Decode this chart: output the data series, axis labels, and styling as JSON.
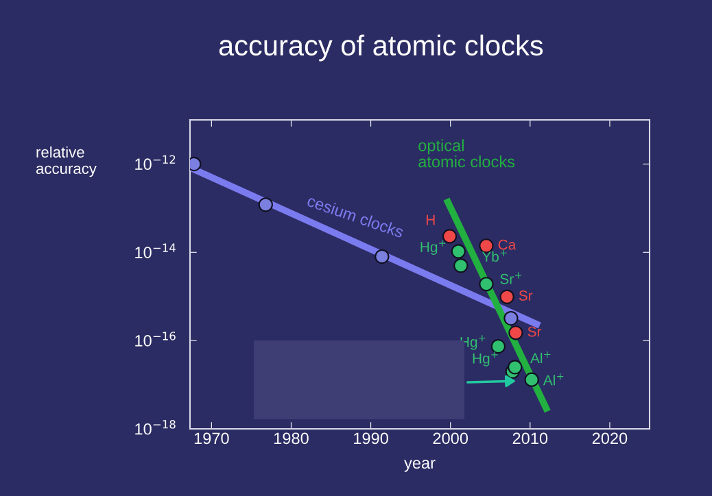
{
  "chart_data": {
    "type": "scatter",
    "title": "accuracy of atomic clocks",
    "xlabel": "year",
    "ylabel": "relative\naccuracy",
    "log": "y",
    "xlim": [
      1967.3,
      2025
    ],
    "ylim": [
      1e-18,
      1e-11
    ],
    "xticks": [
      1970,
      1980,
      1990,
      2000,
      2010,
      2020
    ],
    "yticks": [
      {
        "value": 1e-18,
        "label": "10$^{−18}$"
      },
      {
        "value": 1e-16,
        "label": "10$^{−16}$"
      },
      {
        "value": 1e-14,
        "label": "10$^{−14}$"
      },
      {
        "value": 1e-12,
        "label": "10$^{−12}$"
      }
    ],
    "grid": false,
    "series": [
      {
        "type": "line",
        "name": "cesium clocks",
        "color": "#7b7bf0",
        "x": [
          1967.3,
          2011.2
        ],
        "values": [
          8.3e-13,
          2.2e-16
        ]
      },
      {
        "type": "line",
        "name": "optical\natomic clocks",
        "color": "#22b040",
        "x": [
          1999.5,
          2012.2
        ],
        "values": [
          1.6e-13,
          2.5e-18
        ]
      },
      {
        "marker": "circle",
        "color": "#7b7fe0",
        "x": [
          1967.8,
          1976.8,
          1991.4,
          2007.6
        ],
        "values": [
          1e-12,
          1.2e-13,
          8e-15,
          3.2e-16
        ]
      },
      {
        "marker": "circle",
        "color": "#f04848",
        "x": [
          1999.9,
          2004.5,
          2007.1,
          2008.2
        ],
        "values": [
          2.3e-14,
          1.4e-14,
          9.8e-16,
          1.5e-16
        ]
      },
      {
        "marker": "circle",
        "color": "#30c070",
        "x": [
          2001.0,
          2001.3,
          2004.5,
          2006.0,
          2007.8,
          2008.1,
          2010.2
        ],
        "values": [
          1.05e-14,
          5e-15,
          1.9e-15,
          7.4e-17,
          2e-17,
          2.5e-17,
          1.3e-17
        ]
      }
    ],
    "annotations": [
      {
        "text": "H",
        "x": 1999.9,
        "y": 2.3e-14
      },
      {
        "text": "Ca",
        "x": 2004.5,
        "y": 1.4e-14
      },
      {
        "text": "Sr",
        "x": 2007.1,
        "y": 9.8e-16
      },
      {
        "text": "Sr",
        "x": 2008.2,
        "y": 1.5e-16
      },
      {
        "text": "Hg$^{+}$",
        "x": 2001.0,
        "y": 1.05e-14
      },
      {
        "text": "Yb$^{+}$",
        "x": 2001.3,
        "y": 5e-15
      },
      {
        "text": "Sr$^{+}$",
        "x": 2004.5,
        "y": 1.9e-15
      },
      {
        "text": "Hg$^{+}$",
        "x": 2006.0,
        "y": 7.4e-17
      },
      {
        "text": "Hg$^{+}$",
        "x": 2007.8,
        "y": 2e-17
      },
      {
        "text": "Al$^{+}$",
        "x": 2008.1,
        "y": 2.5e-17
      },
      {
        "text": "Al$^{+}$",
        "x": 2010.2,
        "y": 1.3e-17
      }
    ]
  }
}
